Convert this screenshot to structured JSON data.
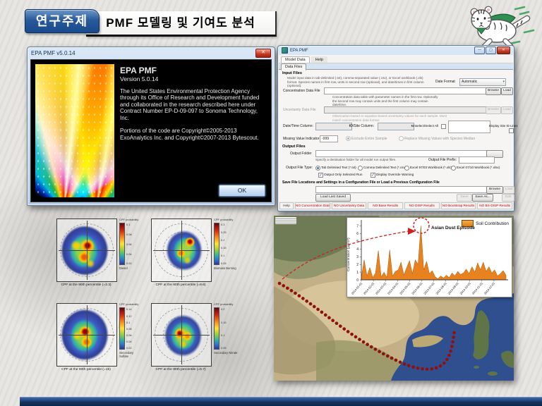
{
  "header": {
    "topic_label": "연구주제",
    "title": "PMF 모델링 및 기여도 분석"
  },
  "splash": {
    "window_title": "EPA PMF v5.0.14",
    "close_glyph": "✕",
    "app_name": "EPA PMF",
    "version": "Version 5.0.14",
    "paragraph1": "The United States Environmental Protection Agency through its Office of Research and Development funded and collaborated in the research described here under Contract Number EP-D-09-097 to Sonoma Technology, Inc.",
    "paragraph2": "Portions of the code are Copyright©2005-2013 ExoAnalytics Inc. and Copyright©2007-2013 Bytescout.",
    "ok_label": "OK"
  },
  "pmf_app": {
    "window_title": "EPA PMF",
    "minimize_glyph": "—",
    "maximize_glyph": "▢",
    "close_glyph": "✕",
    "menu": [
      "Model Data",
      "Help"
    ],
    "tab": "Data Files",
    "input_files": {
      "heading": "Input Files",
      "description": "Model input data in tab-delimited (.txt), comma-separated value (.csv), or Excel workbook (.xls) format. Species names in first row, units in second row (optional), and date/times in first column (optional).",
      "date_format_label": "Date Format",
      "date_format_value": "Automatic",
      "conc_label": "Concentration Data File",
      "conc_desc": "Concentration data table with parameter names in the first row. Optionally the second row may contain units and the first column may contain date/time.",
      "unc_label": "Uncertainty Data File",
      "unc_desc": "Observation-based or equation-based uncertainty values for each sample. Must match concentration data format.",
      "browse_label": "Browse",
      "load_label": "Load",
      "datetime_col_label": "Date/Time Column:",
      "idsite_col_label": "ID/Site Column:",
      "unselect_label": "Unselect/Select All",
      "display_site_label": "Display Site ID Lines",
      "missing_label": "Missing Value Indicator",
      "missing_value": "-999",
      "radio_exclude": "Exclude Entire Sample",
      "radio_replace": "Replace Missing Values with Species Median"
    },
    "output_files": {
      "heading": "Output Files",
      "folder_label": "Output Folder",
      "folder_desc": "Specify a destination folder for all model run output files.",
      "prefix_label": "Output File Prefix:",
      "type_label": "Output File Type:",
      "types": [
        "Tab Delimited Text (*.txt)",
        "Comma Delimited Text (*.csv)",
        "Excel 97/03 Workbook (*.xls)",
        "Excel 07/10 Workbook (*.xlsx)"
      ],
      "check1": "Output Only Selected Run",
      "check2": "Display Override Warning"
    },
    "config": {
      "heading": "Save File Locations and Settings in a Configuration File or Load a Previous Configuration File",
      "load_last_label": "Load Last Saved",
      "save_label": "Save",
      "save_as_label": "Save As...",
      "edit_label": "Edit",
      "browse_label": "Browse",
      "load_label": "Load"
    },
    "footer": {
      "reset_label": "Reset All",
      "exit_label": "Exit Program"
    },
    "statusbar": [
      "Help",
      "NO Concentration Data",
      "NO Uncertainty Data",
      "NO Base Results",
      "NO DISP Results",
      "NO Bootstrap Results",
      "NO BS-DISP Results"
    ]
  },
  "cpf_plots": [
    {
      "caption": "CPF at the 90th percentile (=3.3)",
      "colorbar_title": "CPF probability",
      "ticks": [
        "0.1",
        "0.08",
        "0.06",
        "0.04",
        "0.02"
      ],
      "label": "Diesel"
    },
    {
      "caption": "CPF at the 90th percentile (=8.6)",
      "colorbar_title": "CPF probability",
      "ticks": [
        "0.3",
        "0.25",
        "0.2",
        "0.15",
        "0.1",
        "0.05"
      ],
      "label": "Biomass Burning"
    },
    {
      "caption": "CPF at the 90th percentile (=15)",
      "colorbar_title": "CPF probability",
      "ticks": [
        "0.14",
        "0.12",
        "0.1",
        "0.08",
        "0.06",
        "0.04",
        "0.02"
      ],
      "label": "Secondary Sulfate"
    },
    {
      "caption": "CPF at the 90th percentile (=6.7)",
      "colorbar_title": "CPF probability",
      "ticks": [
        "0.2",
        "0.15",
        "0.1",
        "0.05"
      ],
      "label": "Secondary Nitrate"
    }
  ],
  "inset": {
    "legend": "Soil Contribution",
    "annotation": "Asian Dust Episode"
  },
  "chart_data": {
    "type": "area",
    "title": "Soil Contribution",
    "ylabel": "Concentration (µg/m³)",
    "ylim": [
      0,
      7
    ],
    "yticks": [
      "0",
      "1",
      "2",
      "3",
      "4",
      "5",
      "6",
      "7"
    ],
    "x_ticks": [
      "2014-01-01",
      "2014-02-01",
      "2014-03-01",
      "2014-04-01",
      "2014-05-01",
      "2014-06-01",
      "2014-07-01",
      "2014-08-01",
      "2014-09-01",
      "2014-10-01",
      "2014-11-01",
      "2014-12-01"
    ],
    "values": [
      0.3,
      2.6,
      0.5,
      1.6,
      0.3,
      0.9,
      3.8,
      0.4,
      1.0,
      0.3,
      3.9,
      0.5,
      1.1,
      1.3,
      2.3,
      0.6,
      1.6,
      2.5,
      0.8,
      2.6,
      2.0,
      7.0,
      1.3,
      2.4,
      0.8,
      1.2,
      0.4,
      0.15,
      0.5,
      0.25,
      0.6,
      0.3,
      0.9,
      0.5,
      1.1,
      0.7,
      0.9,
      1.4,
      0.8,
      1.7,
      1.0,
      2.2,
      1.3,
      2.3,
      1.1,
      1.7,
      0.9,
      1.3,
      0.5,
      0.8,
      1.2,
      0.6
    ],
    "legend": [
      "Soil Contribution"
    ],
    "legend_position": "top-right",
    "annotation": "Asian Dust Episode",
    "color": "#e8821e",
    "stroke": "#a85c0e",
    "grid": false
  },
  "colors": {
    "header_blue": "#1d4e91",
    "status_red": "#c00000",
    "trajectory_red": "#8e1111",
    "annotation_red": "#cf2020"
  }
}
